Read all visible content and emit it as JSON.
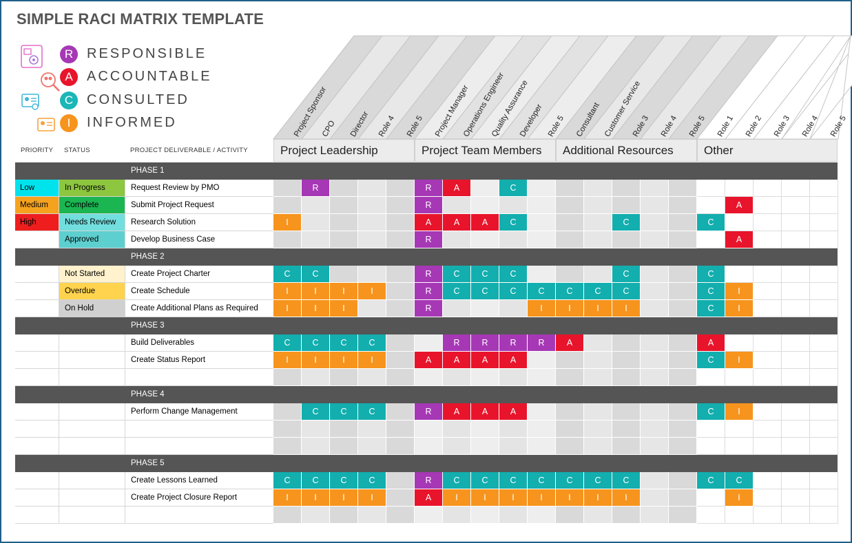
{
  "title": "SIMPLE RACI MATRIX TEMPLATE",
  "legend": [
    {
      "letter": "R",
      "label": "RESPONSIBLE",
      "color": "#a638b5",
      "icon": "document-gear-icon"
    },
    {
      "letter": "A",
      "label": "ACCOUNTABLE",
      "color": "#e8142b",
      "icon": "magnifier-people-icon"
    },
    {
      "letter": "C",
      "label": "CONSULTED",
      "color": "#1bb6b6",
      "icon": "id-card-icon"
    },
    {
      "letter": "I",
      "label": "INFORMED",
      "color": "#f7941d",
      "icon": "info-card-icon"
    }
  ],
  "column_headers": {
    "priority": "PRIORITY",
    "status": "STATUS",
    "deliverable": "PROJECT DELIVERABLE / ACTIVITY"
  },
  "groups": [
    "Project Leadership",
    "Project Team Members",
    "Additional Resources",
    "Other"
  ],
  "roles": [
    "Project Sponsor",
    "CPO",
    "Director",
    "Role 4",
    "Role 5",
    "Project Manager",
    "Operations Engineer",
    "Quality Assurance",
    "Developer",
    "Role 5",
    "Consultant",
    "Customer Service",
    "Role 3",
    "Role 4",
    "Role 5",
    "Role 1",
    "Role 2",
    "Role 3",
    "Role 4",
    "Role 5"
  ],
  "colors": {
    "R": "#a638b5",
    "A": "#e8142b",
    "C": "#13aeae",
    "I": "#f7941d",
    "priority": {
      "Low": "#00e3ed",
      "Medium": "#f5a31f",
      "High": "#ee1e1e"
    },
    "status": {
      "In Progress": "#8dc63f",
      "Complete": "#1bb552",
      "Needs Review": "#72dede",
      "Approved": "#5ecfcf",
      "Not Started": "#fff2cc",
      "Overdue": "#ffd34e",
      "On Hold": "#d0d0d0"
    }
  },
  "phases": [
    {
      "label": "PHASE 1",
      "rows": [
        {
          "priority": "Low",
          "status": "In Progress",
          "deliverable": "Request Review by PMO",
          "raci": [
            "",
            "R",
            "",
            "",
            "",
            "R",
            "A",
            "",
            "C",
            "",
            "",
            "",
            "",
            "",
            "",
            "",
            "",
            "",
            "",
            ""
          ]
        },
        {
          "priority": "Medium",
          "status": "Complete",
          "deliverable": "Submit Project Request",
          "raci": [
            "",
            "",
            "",
            "",
            "",
            "R",
            "",
            "",
            "",
            "",
            "",
            "",
            "",
            "",
            "",
            "",
            "A",
            "",
            "",
            ""
          ]
        },
        {
          "priority": "High",
          "status": "Needs Review",
          "deliverable": "Research Solution",
          "raci": [
            "I",
            "",
            "",
            "",
            "",
            "A",
            "A",
            "A",
            "C",
            "",
            "",
            "",
            "C",
            "",
            "",
            "C",
            "",
            "",
            "",
            ""
          ]
        },
        {
          "priority": "",
          "status": "Approved",
          "deliverable": "Develop Business Case",
          "raci": [
            "",
            "",
            "",
            "",
            "",
            "R",
            "",
            "",
            "",
            "",
            "",
            "",
            "",
            "",
            "",
            "",
            "A",
            "",
            "",
            ""
          ]
        }
      ]
    },
    {
      "label": "PHASE 2",
      "rows": [
        {
          "priority": "",
          "status": "Not Started",
          "deliverable": "Create Project Charter",
          "raci": [
            "C",
            "C",
            "",
            "",
            "",
            "R",
            "C",
            "C",
            "C",
            "",
            "",
            "",
            "C",
            "",
            "",
            "C",
            "",
            "",
            "",
            ""
          ]
        },
        {
          "priority": "",
          "status": "Overdue",
          "deliverable": "Create Schedule",
          "raci": [
            "I",
            "I",
            "I",
            "I",
            "",
            "R",
            "C",
            "C",
            "C",
            "C",
            "C",
            "C",
            "C",
            "",
            "",
            "C",
            "I",
            "",
            "",
            ""
          ]
        },
        {
          "priority": "",
          "status": "On Hold",
          "deliverable": "Create Additional Plans as Required",
          "raci": [
            "I",
            "I",
            "I",
            "",
            "",
            "R",
            "",
            "",
            "",
            "I",
            "I",
            "I",
            "I",
            "",
            "",
            "C",
            "I",
            "",
            "",
            ""
          ]
        }
      ]
    },
    {
      "label": "PHASE 3",
      "rows": [
        {
          "priority": "",
          "status": "",
          "deliverable": "Build Deliverables",
          "raci": [
            "C",
            "C",
            "C",
            "C",
            "",
            "",
            "R",
            "R",
            "R",
            "R",
            "A",
            "",
            "",
            "",
            "",
            "A",
            "",
            "",
            "",
            ""
          ]
        },
        {
          "priority": "",
          "status": "",
          "deliverable": "Create Status Report",
          "raci": [
            "I",
            "I",
            "I",
            "I",
            "",
            "A",
            "A",
            "A",
            "A",
            "",
            "",
            "",
            "",
            "",
            "",
            "C",
            "I",
            "",
            "",
            ""
          ]
        },
        {
          "priority": "",
          "status": "",
          "deliverable": "",
          "raci": [
            "",
            "",
            "",
            "",
            "",
            "",
            "",
            "",
            "",
            "",
            "",
            "",
            "",
            "",
            "",
            "",
            "",
            "",
            "",
            ""
          ]
        }
      ]
    },
    {
      "label": "PHASE 4",
      "rows": [
        {
          "priority": "",
          "status": "",
          "deliverable": "Perform Change Management",
          "raci": [
            "",
            "C",
            "C",
            "C",
            "",
            "R",
            "A",
            "A",
            "A",
            "",
            "",
            "",
            "",
            "",
            "",
            "C",
            "I",
            "",
            "",
            ""
          ]
        },
        {
          "priority": "",
          "status": "",
          "deliverable": "",
          "raci": [
            "",
            "",
            "",
            "",
            "",
            "",
            "",
            "",
            "",
            "",
            "",
            "",
            "",
            "",
            "",
            "",
            "",
            "",
            "",
            ""
          ]
        },
        {
          "priority": "",
          "status": "",
          "deliverable": "",
          "raci": [
            "",
            "",
            "",
            "",
            "",
            "",
            "",
            "",
            "",
            "",
            "",
            "",
            "",
            "",
            "",
            "",
            "",
            "",
            "",
            ""
          ]
        }
      ]
    },
    {
      "label": "PHASE 5",
      "rows": [
        {
          "priority": "",
          "status": "",
          "deliverable": "Create Lessons Learned",
          "raci": [
            "C",
            "C",
            "C",
            "C",
            "",
            "R",
            "C",
            "C",
            "C",
            "C",
            "C",
            "C",
            "C",
            "",
            "",
            "C",
            "C",
            "",
            "",
            ""
          ]
        },
        {
          "priority": "",
          "status": "",
          "deliverable": "Create Project Closure Report",
          "raci": [
            "I",
            "I",
            "I",
            "I",
            "",
            "A",
            "I",
            "I",
            "I",
            "I",
            "I",
            "I",
            "I",
            "",
            "",
            "",
            "I",
            "",
            "",
            ""
          ]
        },
        {
          "priority": "",
          "status": "",
          "deliverable": "",
          "raci": [
            "",
            "",
            "",
            "",
            "",
            "",
            "",
            "",
            "",
            "",
            "",
            "",
            "",
            "",
            "",
            "",
            "",
            "",
            "",
            ""
          ]
        }
      ]
    }
  ]
}
